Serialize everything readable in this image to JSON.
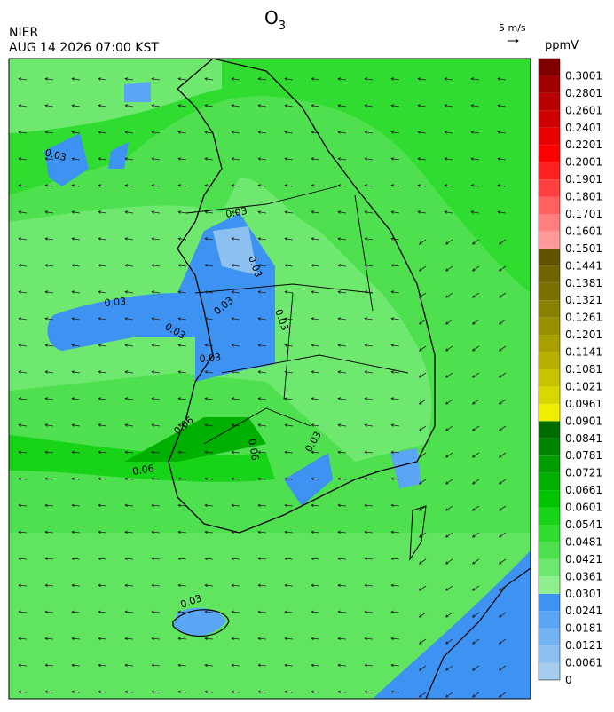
{
  "header": {
    "title": "O",
    "title_sub": "3",
    "agency": "NIER",
    "timestamp": "AUG 14 2026 07:00 KST",
    "wind_scale": "5 m/s"
  },
  "colorbar": {
    "unit": "ppmV",
    "labels": [
      "0",
      "0.0061",
      "0.0121",
      "0.0181",
      "0.0241",
      "0.0301",
      "0.0361",
      "0.0421",
      "0.0481",
      "0.0541",
      "0.0601",
      "0.0661",
      "0.0721",
      "0.0781",
      "0.0841",
      "0.0901",
      "0.0961",
      "0.1021",
      "0.1081",
      "0.1141",
      "0.1201",
      "0.1261",
      "0.1321",
      "0.1381",
      "0.1441",
      "0.1501",
      "0.1601",
      "0.1701",
      "0.1801",
      "0.1901",
      "0.2001",
      "0.2201",
      "0.2401",
      "0.2601",
      "0.2801",
      "0.3001"
    ],
    "colors": [
      "#a6cdee",
      "#8cc0f0",
      "#74b3f2",
      "#5aa5f4",
      "#3e92f2",
      "#90f090",
      "#6ee86e",
      "#4ee04e",
      "#30dc30",
      "#18d418",
      "#00c400",
      "#00b000",
      "#009c00",
      "#008400",
      "#006c00",
      "#f0f000",
      "#d8d800",
      "#c8c400",
      "#b8b000",
      "#a8a000",
      "#989000",
      "#888000",
      "#787000",
      "#706400",
      "#605400",
      "#ff9a9a",
      "#ff8080",
      "#ff6060",
      "#ff4040",
      "#ff2020",
      "#ff0000",
      "#e80000",
      "#d00000",
      "#b80000",
      "#a00000",
      "#800000"
    ]
  },
  "contours": [
    "0.03",
    "0.03",
    "0.03",
    "0.03",
    "0.03",
    "0.03",
    "0.03",
    "0.03",
    "0.06",
    "0.06",
    "0.06",
    "0.03",
    "0.03"
  ]
}
